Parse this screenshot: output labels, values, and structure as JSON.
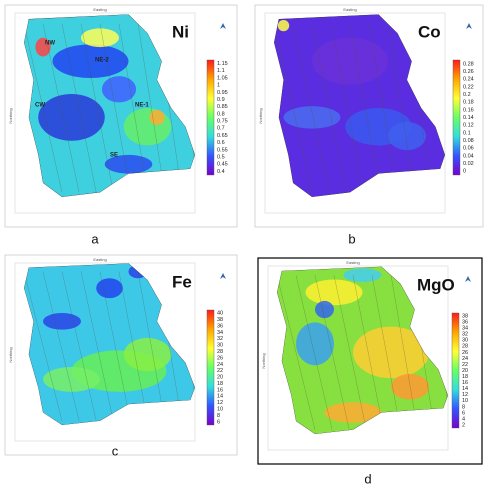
{
  "axis_labels": {
    "x": "Easting",
    "y": "Northing"
  },
  "panels": [
    {
      "label": "a",
      "element": "Ni",
      "zones": [
        "NW",
        "NE-2",
        "CW",
        "NE-1",
        "SE"
      ],
      "ticks": [
        "1.15",
        "1.1",
        "1.05",
        "1",
        "0.95",
        "0.9",
        "0.85",
        "0.8",
        "0.75",
        "0.7",
        "0.65",
        "0.6",
        "0.55",
        "0.5",
        "0.45",
        "0.4"
      ]
    },
    {
      "label": "b",
      "element": "Co",
      "zones": [],
      "ticks": [
        "0.28",
        "0.26",
        "0.24",
        "0.22",
        "0.2",
        "0.18",
        "0.16",
        "0.14",
        "0.12",
        "0.1",
        "0.08",
        "0.06",
        "0.04",
        "0.02",
        "0"
      ]
    },
    {
      "label": "c",
      "element": "Fe",
      "zones": [],
      "ticks": [
        "40",
        "38",
        "36",
        "34",
        "32",
        "30",
        "28",
        "26",
        "24",
        "22",
        "20",
        "18",
        "16",
        "14",
        "12",
        "10",
        "8",
        "6"
      ]
    },
    {
      "label": "d",
      "element": "MgO",
      "zones": [],
      "ticks": [
        "38",
        "36",
        "34",
        "32",
        "30",
        "28",
        "26",
        "24",
        "22",
        "20",
        "18",
        "16",
        "14",
        "12",
        "10",
        "8",
        "6",
        "4",
        "2"
      ]
    }
  ]
}
